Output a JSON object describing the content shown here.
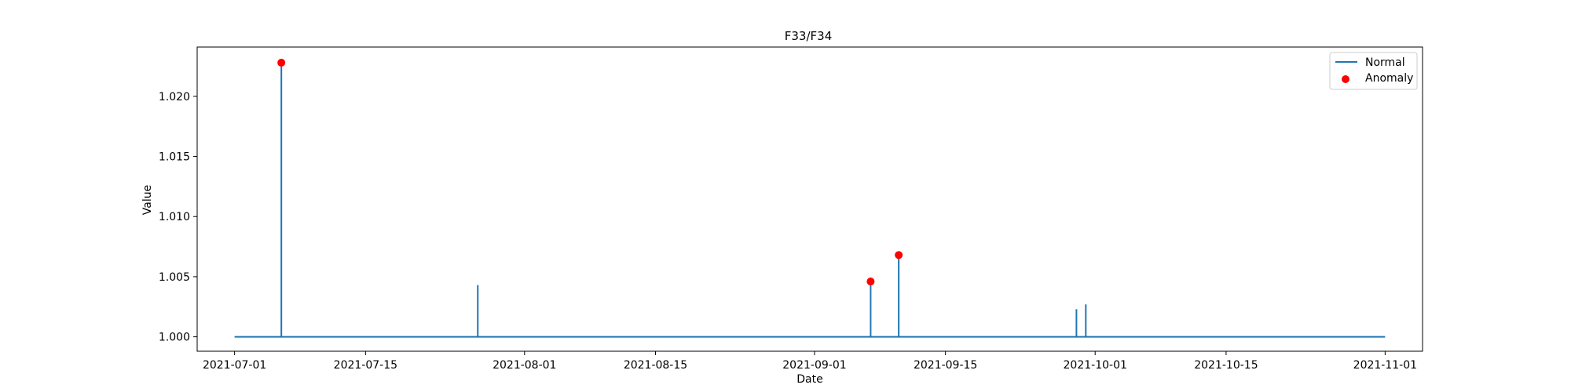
{
  "chart_data": {
    "type": "line",
    "title": "F33/F34",
    "xlabel": "Date",
    "ylabel": "Value",
    "xlim": [
      "2021-06-27",
      "2021-11-05"
    ],
    "ylim": [
      0.9988,
      1.0241
    ],
    "x_ticks": [
      "2021-07-01",
      "2021-07-15",
      "2021-08-01",
      "2021-08-15",
      "2021-09-01",
      "2021-09-15",
      "2021-10-01",
      "2021-10-15",
      "2021-11-01"
    ],
    "y_ticks": [
      1.0,
      1.005,
      1.01,
      1.015,
      1.02
    ],
    "y_tick_labels": [
      "1.000",
      "1.005",
      "1.010",
      "1.015",
      "1.020"
    ],
    "grid": false,
    "legend_position": "top-right",
    "colors": {
      "normal": "#1f77b4",
      "anomaly": "#ff0000"
    },
    "series": [
      {
        "name": "Normal",
        "kind": "line",
        "x": [
          "2021-07-01",
          "2021-07-06",
          "2021-07-06",
          "2021-07-06",
          "2021-07-06",
          "2021-07-27",
          "2021-07-27",
          "2021-07-27",
          "2021-07-27",
          "2021-09-07",
          "2021-09-07",
          "2021-09-07",
          "2021-09-07",
          "2021-09-10",
          "2021-09-10",
          "2021-09-10",
          "2021-09-10",
          "2021-09-29",
          "2021-09-29",
          "2021-09-29",
          "2021-09-29",
          "2021-09-30",
          "2021-09-30",
          "2021-09-30",
          "2021-09-30",
          "2021-11-01"
        ],
        "y": [
          1.0,
          1.0,
          1.0228,
          1.0228,
          1.0,
          1.0,
          1.0043,
          1.0043,
          1.0,
          1.0,
          1.0046,
          1.0046,
          1.0,
          1.0,
          1.0068,
          1.0068,
          1.0,
          1.0,
          1.0023,
          1.0023,
          1.0,
          1.0,
          1.0027,
          1.0027,
          1.0,
          1.0
        ]
      },
      {
        "name": "Anomaly",
        "kind": "scatter",
        "x": [
          "2021-07-06",
          "2021-09-07",
          "2021-09-10"
        ],
        "y": [
          1.0228,
          1.0046,
          1.0068
        ]
      }
    ]
  }
}
